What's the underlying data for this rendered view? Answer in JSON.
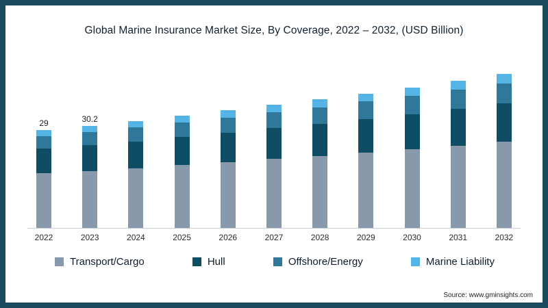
{
  "title": "Global Marine Insurance Market Size, By Coverage, 2022 – 2032, (USD Billion)",
  "source": "Source: www.gminsights.com",
  "frame": {
    "border_color": "#1c4a5e",
    "background": "#ffffff"
  },
  "chart_data": {
    "type": "bar",
    "stacked": true,
    "title": "Global Marine Insurance Market Size, By Coverage, 2022 – 2032, (USD Billion)",
    "xlabel": "",
    "ylabel": "USD Billion",
    "ylim": [
      0,
      48
    ],
    "grid": false,
    "legend_position": "bottom",
    "categories": [
      "2022",
      "2023",
      "2024",
      "2025",
      "2026",
      "2027",
      "2028",
      "2029",
      "2030",
      "2031",
      "2032"
    ],
    "series": [
      {
        "name": "Transport/Cargo",
        "color": "#8799ab",
        "values": [
          16.2,
          16.9,
          17.7,
          18.6,
          19.5,
          20.4,
          21.3,
          22.3,
          23.3,
          24.4,
          25.5
        ]
      },
      {
        "name": "Hull",
        "color": "#0e4d64",
        "values": [
          7.3,
          7.6,
          7.9,
          8.3,
          8.7,
          9.1,
          9.5,
          10.0,
          10.4,
          10.9,
          11.4
        ]
      },
      {
        "name": "Offshore/Energy",
        "color": "#2f7899",
        "values": [
          3.7,
          3.9,
          4.1,
          4.3,
          4.5,
          4.7,
          4.9,
          5.1,
          5.4,
          5.6,
          5.9
        ]
      },
      {
        "name": "Marine Liability",
        "color": "#54b4e4",
        "values": [
          1.8,
          1.8,
          1.9,
          2.0,
          2.1,
          2.2,
          2.3,
          2.4,
          2.5,
          2.6,
          2.7
        ]
      }
    ],
    "data_labels": {
      "2022": "29",
      "2023": "30.2"
    }
  }
}
